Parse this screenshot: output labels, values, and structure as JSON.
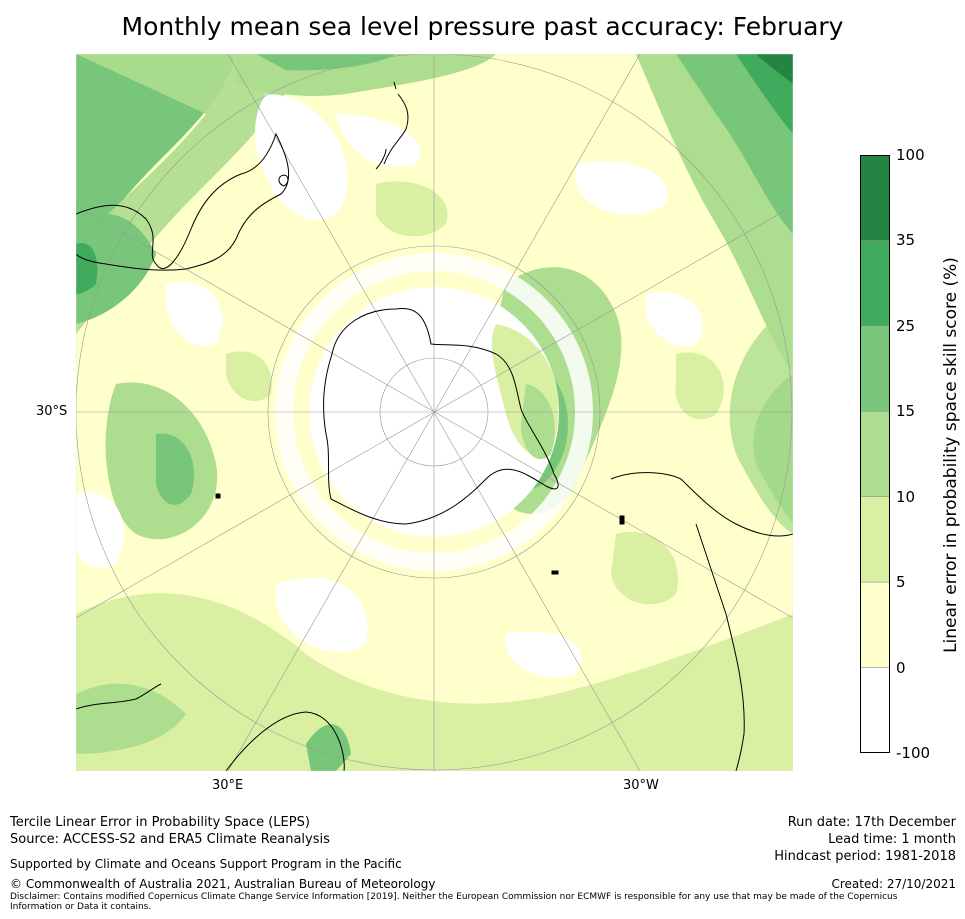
{
  "title": "Monthly mean sea level pressure past accuracy: February",
  "map": {
    "projection": "south-polar-stereographic",
    "lat_label": "30°S",
    "lon_labels": [
      "30°E",
      "30°W"
    ],
    "features": [
      "antarctica-coastline",
      "australia-coastline",
      "new-zealand-coastline",
      "south-america-coastline",
      "africa-coastline",
      "graticule"
    ]
  },
  "colorbar": {
    "label": "Linear error in probability space skill score (%)",
    "ticks": [
      "100",
      "35",
      "25",
      "15",
      "10",
      "5",
      "0",
      "-100"
    ],
    "bins": [
      {
        "range": "35 to 100",
        "color": "#238443"
      },
      {
        "range": "25 to 35",
        "color": "#41ab5d"
      },
      {
        "range": "15 to 25",
        "color": "#78c679"
      },
      {
        "range": "10 to 15",
        "color": "#addd8e"
      },
      {
        "range": "5 to 10",
        "color": "#d9f0a3"
      },
      {
        "range": "0 to 5",
        "color": "#ffffcc"
      },
      {
        "range": "-100 to 0",
        "color": "#ffffff"
      }
    ]
  },
  "footer": {
    "method": "Tercile Linear Error in Probability Space (LEPS)",
    "source": "Source: ACCESS-S2 and ERA5 Climate Reanalysis",
    "support": "Supported by Climate and Oceans Support Program in the Pacific",
    "copyright": "© Commonwealth of Australia 2021, Australian Bureau of Meteorology",
    "disclaimer": "Disclaimer: Contains modified Copernicus Climate Change Service Information [2019]. Neither the European Commission nor ECMWF is responsible for any use that may be made of the Copernicus Information or Data it contains.",
    "run_date": "Run date: 17th December",
    "lead_time": "Lead time: 1 month",
    "hindcast": "Hindcast period: 1981-2018",
    "created": "Created: 27/10/2021"
  }
}
